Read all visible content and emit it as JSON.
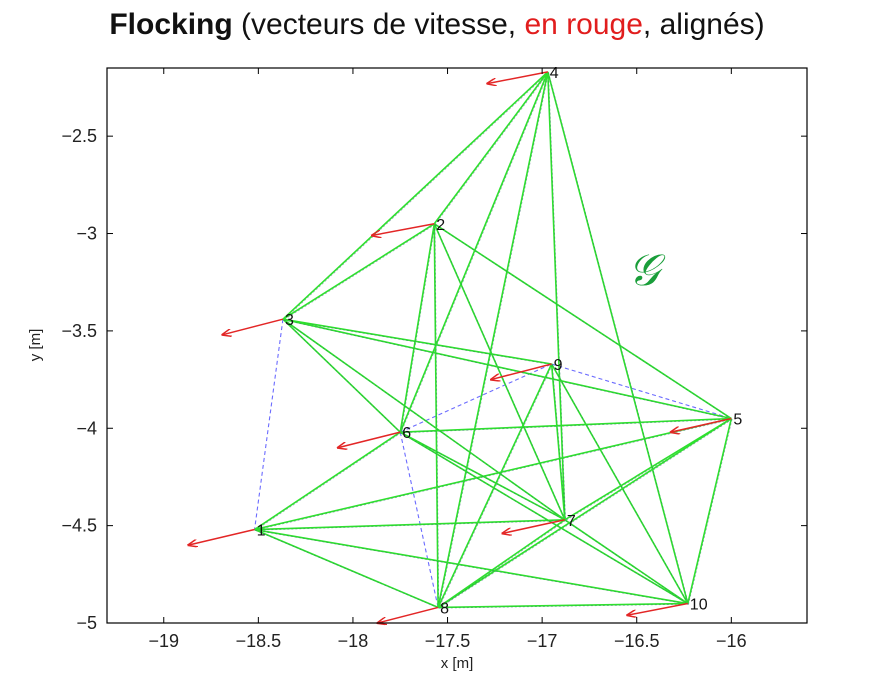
{
  "title": {
    "bold": "Flocking",
    "part1": " (vecteurs de vitesse, ",
    "red": "en rouge",
    "part2": ", alignés)"
  },
  "graph_symbol": "𝒢",
  "colors": {
    "edge_green": "#2ee02e",
    "edge_dark": "#2d5d6e",
    "edge_blue_dashed": "#6b6bff",
    "velocity_red": "#e32626",
    "axis": "#000000"
  },
  "chart_data": {
    "type": "scatter",
    "xlabel": "x [m]",
    "ylabel": "y [m]",
    "xlim": [
      -19.3,
      -15.6
    ],
    "ylim": [
      -5.0,
      -2.15
    ],
    "xticks": [
      -19,
      -18.5,
      -18,
      -17.5,
      -17,
      -16.5,
      -16
    ],
    "yticks": [
      -2.5,
      -3,
      -3.5,
      -4,
      -4.5,
      -5
    ],
    "xtick_labels": [
      "−19",
      "−18.5",
      "−18",
      "−17.5",
      "−17",
      "−16.5",
      "−16"
    ],
    "ytick_labels": [
      "−2.5",
      "−3",
      "−3.5",
      "−4",
      "−4.5",
      "−5"
    ],
    "grid": false,
    "nodes": [
      {
        "id": "1",
        "x": -18.52,
        "y": -4.52,
        "vx": -0.35,
        "vy": -0.08
      },
      {
        "id": "2",
        "x": -17.57,
        "y": -2.95,
        "vx": -0.33,
        "vy": -0.06
      },
      {
        "id": "3",
        "x": -18.37,
        "y": -3.44,
        "vx": -0.32,
        "vy": -0.08
      },
      {
        "id": "4",
        "x": -16.97,
        "y": -2.17,
        "vx": -0.32,
        "vy": -0.06
      },
      {
        "id": "5",
        "x": -16.0,
        "y": -3.95,
        "vx": -0.32,
        "vy": -0.07
      },
      {
        "id": "6",
        "x": -17.75,
        "y": -4.02,
        "vx": -0.33,
        "vy": -0.08
      },
      {
        "id": "7",
        "x": -16.88,
        "y": -4.47,
        "vx": -0.33,
        "vy": -0.07
      },
      {
        "id": "8",
        "x": -17.55,
        "y": -4.92,
        "vx": -0.32,
        "vy": -0.08
      },
      {
        "id": "9",
        "x": -16.95,
        "y": -3.67,
        "vx": -0.32,
        "vy": -0.08
      },
      {
        "id": "10",
        "x": -16.23,
        "y": -4.9,
        "vx": -0.32,
        "vy": -0.06
      }
    ],
    "edges_solid": [
      [
        "4",
        "3"
      ],
      [
        "4",
        "2"
      ],
      [
        "4",
        "6"
      ],
      [
        "4",
        "8"
      ],
      [
        "4",
        "7"
      ],
      [
        "4",
        "10"
      ],
      [
        "2",
        "3"
      ],
      [
        "2",
        "8"
      ],
      [
        "2",
        "7"
      ],
      [
        "2",
        "5"
      ],
      [
        "2",
        "6"
      ],
      [
        "3",
        "9"
      ],
      [
        "3",
        "6"
      ],
      [
        "3",
        "7"
      ],
      [
        "3",
        "5"
      ],
      [
        "9",
        "7"
      ],
      [
        "9",
        "10"
      ],
      [
        "9",
        "8"
      ],
      [
        "5",
        "6"
      ],
      [
        "5",
        "1"
      ],
      [
        "5",
        "7"
      ],
      [
        "5",
        "8"
      ],
      [
        "5",
        "10"
      ],
      [
        "6",
        "7"
      ],
      [
        "6",
        "1"
      ],
      [
        "6",
        "10"
      ],
      [
        "1",
        "7"
      ],
      [
        "1",
        "10"
      ],
      [
        "1",
        "8"
      ],
      [
        "7",
        "8"
      ],
      [
        "7",
        "10"
      ],
      [
        "8",
        "10"
      ]
    ],
    "edges_dashed": [
      [
        "3",
        "1"
      ],
      [
        "1",
        "8"
      ],
      [
        "6",
        "8"
      ],
      [
        "6",
        "9"
      ],
      [
        "9",
        "8"
      ],
      [
        "9",
        "5"
      ]
    ]
  }
}
